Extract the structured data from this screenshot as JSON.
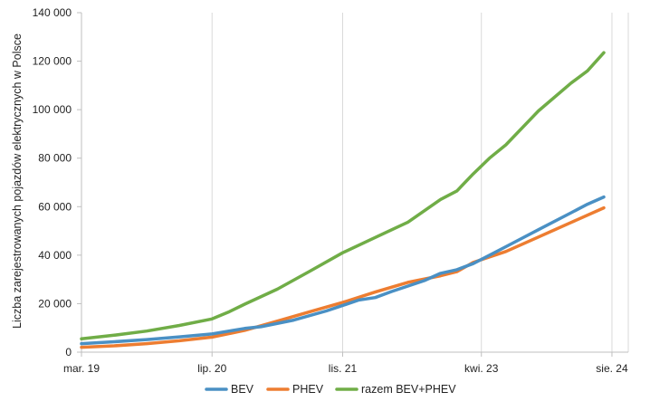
{
  "chart_data": {
    "type": "line",
    "title": "",
    "xlabel": "",
    "ylabel": "Liczba zarejestrowanych pojazdów elektrycznych w Polsce",
    "ylim": [
      0,
      140000
    ],
    "yticks": [
      0,
      20000,
      40000,
      60000,
      80000,
      100000,
      120000,
      140000
    ],
    "ytick_labels": [
      "0",
      "20 000",
      "40 000",
      "60 000",
      "80 000",
      "100 000",
      "120 000",
      "140 000"
    ],
    "x_unit": "months since mar. 19",
    "xlim": [
      0,
      67
    ],
    "xticks": [
      0,
      16,
      32,
      49,
      65
    ],
    "xtick_labels": [
      "mar. 19",
      "lip. 20",
      "lis. 21",
      "kwi. 23",
      "sie. 24"
    ],
    "grid": "vertical",
    "legend_position": "bottom",
    "series": [
      {
        "name": "BEV",
        "color": "#4a90c4",
        "x": [
          0,
          4,
          8,
          12,
          16,
          20,
          22,
          26,
          30,
          34,
          36,
          38,
          42,
          44,
          46,
          48,
          50,
          52,
          56,
          60,
          62,
          64
        ],
        "values": [
          3500,
          4300,
          5200,
          6300,
          7500,
          9800,
          10500,
          13200,
          17000,
          21500,
          22500,
          25000,
          29500,
          32500,
          34000,
          36500,
          40000,
          43500,
          50500,
          57500,
          61000,
          64000
        ]
      },
      {
        "name": "PHEV",
        "color": "#ed7d31",
        "x": [
          0,
          4,
          8,
          12,
          16,
          20,
          24,
          28,
          32,
          36,
          40,
          44,
          46,
          48,
          52,
          56,
          60,
          64
        ],
        "values": [
          2000,
          2600,
          3500,
          4700,
          6200,
          9000,
          12800,
          16700,
          20500,
          24800,
          28800,
          31500,
          33200,
          37000,
          41500,
          47500,
          53500,
          59500
        ]
      },
      {
        "name": "razem BEV+PHEV",
        "color": "#70ad47",
        "x": [
          0,
          4,
          8,
          12,
          16,
          18,
          20,
          24,
          28,
          32,
          36,
          40,
          44,
          46,
          48,
          50,
          52,
          56,
          60,
          62,
          64
        ],
        "values": [
          5500,
          7000,
          8700,
          11000,
          13700,
          16500,
          19800,
          26000,
          33400,
          41000,
          47300,
          53600,
          63000,
          66500,
          73500,
          80000,
          85500,
          99500,
          111000,
          116000,
          123500
        ]
      }
    ]
  }
}
